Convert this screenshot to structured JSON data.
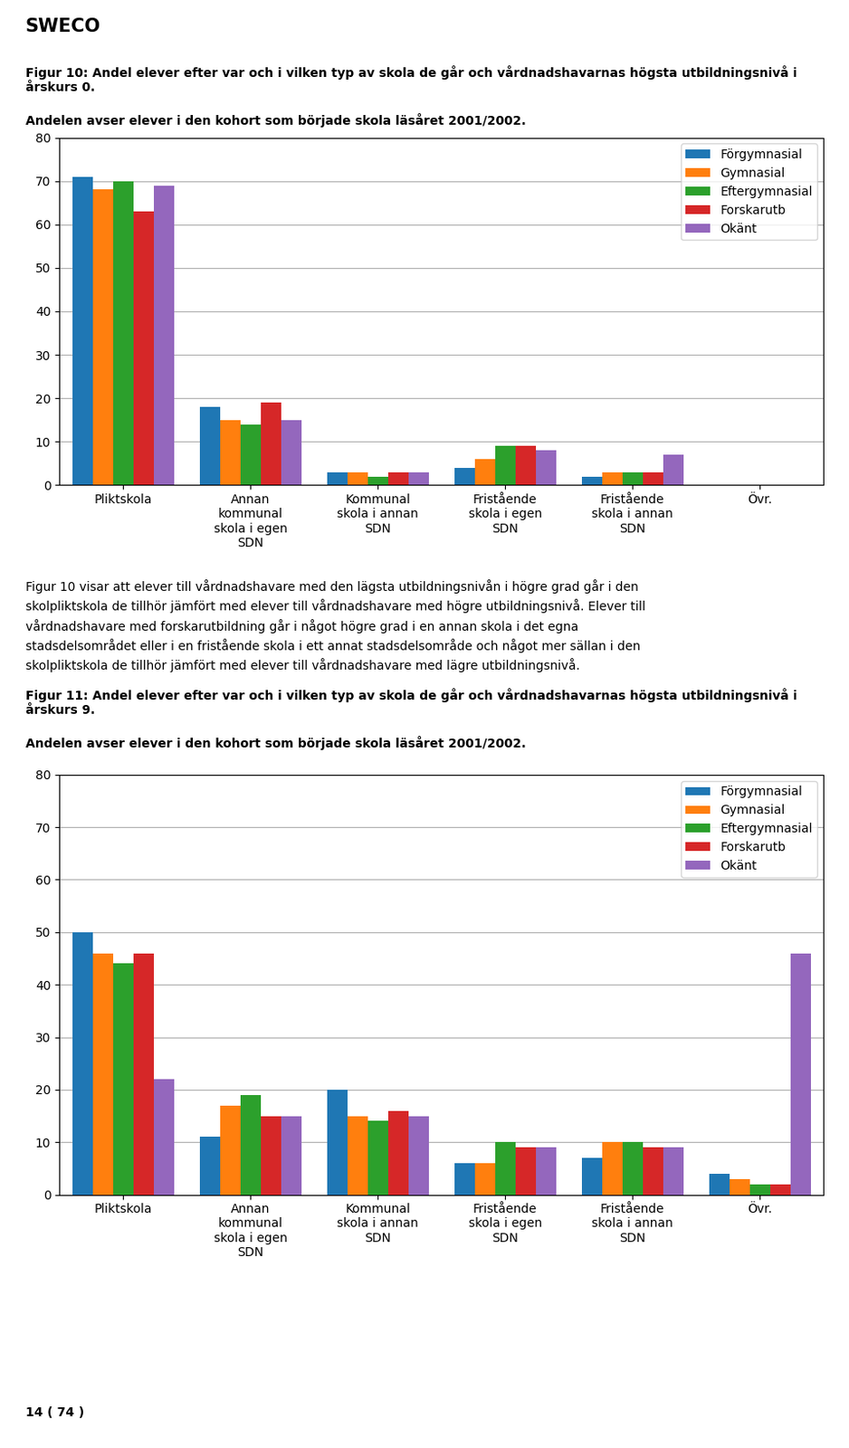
{
  "chart_data": [
    {
      "type": "bar",
      "title": "Figur 10: Andel elever efter var och i vilken typ av skola de går och vårdnadshavarnas högsta utbildningsnivå i årskurs 0.",
      "subtitle": "Andelen avser elever i den kohort som började skola läsåret 2001/2002.",
      "annotations": [
        "SWECO",
        "Figur 10 visar att elever till vårdnadshavare med den lägsta utbildningsnivån i högre grad går i den\nskolpliktskola de tillhör jämfört med elever till vårdnadshavare med högre utbildningsnivå. Elever till\nvårdnadshavare med forskarutbildning går i något högre grad i en annan skola i det egna\nstadsdelsområdet eller i en fristående skola i ett annat stadsdelsområde och något mer sällan i den\nskolpliktskola de tillhör jämfört med elever till vårdnadshavare med lägre utbildningsnivå."
      ],
      "categories": [
        "Pliktskola",
        "Annan\nkommunal\nskola i egen\nSDN",
        "Kommunal\nskola i annan\nSDN",
        "Fristående\nskola i egen\nSDN",
        "Fristående\nskola i annan\nSDN",
        "Övr."
      ],
      "series": [
        {
          "name": "Förgymnasial",
          "values": [
            71,
            18,
            3,
            4,
            2,
            0
          ]
        },
        {
          "name": "Gymnasial",
          "values": [
            68,
            15,
            3,
            6,
            3,
            0
          ]
        },
        {
          "name": "Eftergymnasial",
          "values": [
            70,
            14,
            2,
            9,
            3,
            0
          ]
        },
        {
          "name": "Forskarutb",
          "values": [
            63,
            19,
            3,
            9,
            3,
            0
          ]
        },
        {
          "name": "Okänt",
          "values": [
            69,
            15,
            3,
            8,
            7,
            0
          ]
        }
      ],
      "ylim": [
        0,
        80
      ],
      "yticks": [
        0,
        10,
        20,
        30,
        40,
        50,
        60,
        70,
        80
      ],
      "grid": true,
      "legend": "upper right"
    },
    {
      "type": "bar",
      "title": "Figur 11: Andel elever efter var och i vilken typ av skola de går och vårdnadshavarnas högsta utbildningsnivå i årskurs 9.",
      "subtitle": "Andelen avser elever i den kohort som började skola läsåret 2001/2002.",
      "annotations": [
        "14 ( 74 )"
      ],
      "categories": [
        "Pliktskola",
        "Annan\nkommunal\nskola i egen\nSDN",
        "Kommunal\nskola i annan\nSDN",
        "Fristående\nskola i egen\nSDN",
        "Fristående\nskola i annan\nSDN",
        "Övr."
      ],
      "series": [
        {
          "name": "Förgymnasial",
          "values": [
            50,
            11,
            20,
            6,
            7,
            4
          ]
        },
        {
          "name": "Gymnasial",
          "values": [
            46,
            17,
            15,
            6,
            10,
            3
          ]
        },
        {
          "name": "Eftergymnasial",
          "values": [
            44,
            19,
            14,
            10,
            10,
            2
          ]
        },
        {
          "name": "Forskarutb",
          "values": [
            46,
            15,
            16,
            9,
            9,
            2
          ]
        },
        {
          "name": "Okänt",
          "values": [
            22,
            15,
            15,
            9,
            9,
            46
          ]
        }
      ],
      "ylim": [
        0,
        80
      ],
      "yticks": [
        0,
        10,
        20,
        30,
        40,
        50,
        60,
        70,
        80
      ],
      "grid": true,
      "legend": "upper right"
    }
  ]
}
